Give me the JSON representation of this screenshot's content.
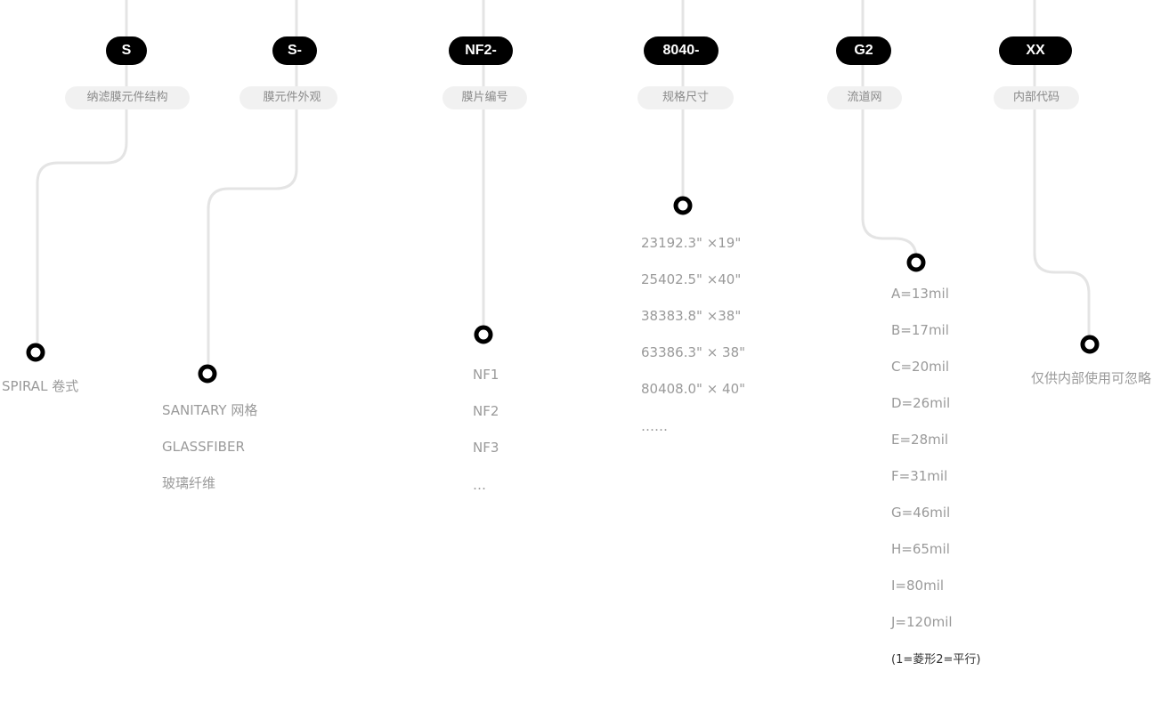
{
  "colors": {
    "line": "#e4e4e4",
    "pill": "#000000",
    "label_bg": "#f1f1f1",
    "text": "#9a9a9a"
  },
  "columns": [
    {
      "code": "S",
      "label": "纳滤膜元件结构",
      "items": [
        "SPIRAL 卷式"
      ]
    },
    {
      "code": "S-",
      "label": "膜元件外观",
      "items": [
        "SANITARY 网格",
        "GLASSFIBER",
        "玻璃纤维"
      ]
    },
    {
      "code": "NF2-",
      "label": "膜片编号",
      "items": [
        "NF1",
        "NF2",
        "NF3",
        "…"
      ]
    },
    {
      "code": "8040-",
      "label": "规格尺寸",
      "items": [
        "23192.3\" ×19\"",
        "25402.5\" ×40\"",
        "38383.8\" ×38\"",
        "63386.3\" × 38\"",
        "80408.0\" × 40\"",
        "……"
      ]
    },
    {
      "code": "G2",
      "label": "流道网",
      "items": [
        "A=13mil",
        "B=17mil",
        "C=20mil",
        "D=26mil",
        "E=28mil",
        "F=31mil",
        "G=46mil",
        "H=65mil",
        "I=80mil",
        "J=120mil"
      ],
      "note": "(1=菱形2=平行)"
    },
    {
      "code": "XX",
      "label": "内部代码",
      "items": [
        "仅供内部使用可忽略"
      ]
    }
  ]
}
